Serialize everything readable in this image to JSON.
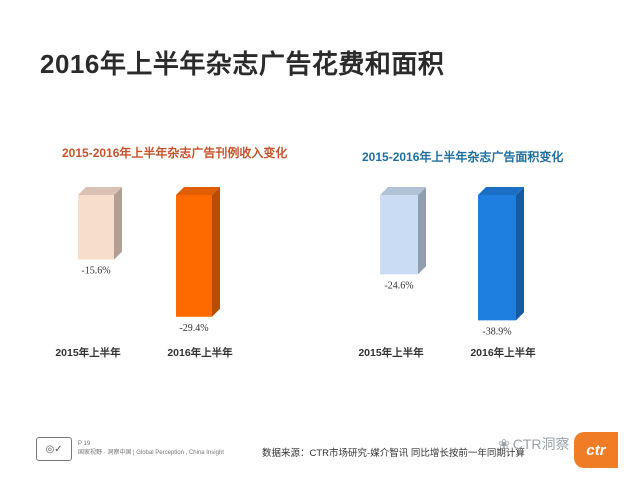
{
  "page": {
    "title": "2016年上半年杂志广告花费和面积"
  },
  "chart_data": [
    {
      "type": "bar",
      "title": "2015-2016年上半年杂志广告刊例收入变化",
      "categories": [
        "2015年上半年",
        "2016年上半年"
      ],
      "values": [
        -15.6,
        -29.4
      ],
      "data_labels": [
        "-15.6%",
        "-29.4%"
      ],
      "colors": [
        "#f7ddcc",
        "#ff6a00"
      ],
      "ylim": [
        -35,
        0
      ]
    },
    {
      "type": "bar",
      "title": "2015-2016年上半年杂志广告面积变化",
      "categories": [
        "2015年上半年",
        "2016年上半年"
      ],
      "values": [
        -24.6,
        -38.9
      ],
      "data_labels": [
        "-24.6%",
        "-38.9%"
      ],
      "colors": [
        "#c9dcf3",
        "#1f7fe0"
      ],
      "ylim": [
        -45,
        0
      ]
    }
  ],
  "footer": {
    "page_no": "P 19",
    "small_text": "国家视野 · 洞察中国 | Global Perception , China Insight",
    "source": "数据来源：CTR市场研究-媒介智讯  同比增长按前一年同期计算",
    "watermark": "CTR洞察",
    "logo_text": "ctr"
  }
}
